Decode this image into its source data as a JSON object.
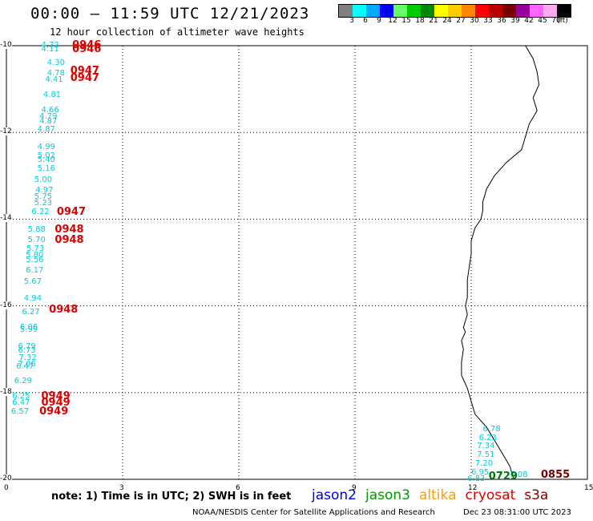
{
  "header": {
    "title": "00:00 – 11:59 UTC 12/21/2023",
    "subtitle": "12 hour collection of altimeter wave heights"
  },
  "color_scale": {
    "colors": [
      "#808080",
      "#00ffff",
      "#00aaff",
      "#0000ff",
      "#66ff66",
      "#00cc00",
      "#008800",
      "#ffff00",
      "#ffcc00",
      "#ff8800",
      "#ff0000",
      "#bb0000",
      "#770000",
      "#990099",
      "#ff66ff",
      "#ffaaee",
      "#000000"
    ],
    "labels": [
      "3",
      "6",
      "9",
      "12",
      "15",
      "18",
      "21",
      "24",
      "27",
      "30",
      "33",
      "36",
      "39",
      "42",
      "45",
      "70",
      "(ft)"
    ]
  },
  "axes": {
    "x_ticks": [
      "0",
      "3",
      "6",
      "9",
      "12",
      "15"
    ],
    "y_ticks": [
      "-10",
      "-12",
      "-14",
      "-16",
      "-18",
      "-20"
    ]
  },
  "wave_heights": [
    {
      "label": "4.72",
      "lon": 0.9,
      "lat": -10.0
    },
    {
      "label": "4.11",
      "lon": 0.9,
      "lat": -10.1
    },
    {
      "label": "4.30",
      "lon": 1.05,
      "lat": -10.4
    },
    {
      "label": "4.78",
      "lon": 1.05,
      "lat": -10.65
    },
    {
      "label": "4.41",
      "lon": 1.0,
      "lat": -10.8
    },
    {
      "label": "4.81",
      "lon": 0.95,
      "lat": -11.15
    },
    {
      "label": "4.66",
      "lon": 0.9,
      "lat": -11.5
    },
    {
      "label": "4.79",
      "lon": 0.85,
      "lat": -11.65
    },
    {
      "label": "4.87",
      "lon": 0.85,
      "lat": -11.75
    },
    {
      "label": "4.87",
      "lon": 0.8,
      "lat": -11.95
    },
    {
      "label": "4.99",
      "lon": 0.8,
      "lat": -12.35
    },
    {
      "label": "5.02",
      "lon": 0.8,
      "lat": -12.55
    },
    {
      "label": "5.40",
      "lon": 0.8,
      "lat": -12.65
    },
    {
      "label": "5.16",
      "lon": 0.8,
      "lat": -12.85
    },
    {
      "label": "5.00",
      "lon": 0.72,
      "lat": -13.1
    },
    {
      "label": "4.97",
      "lon": 0.75,
      "lat": -13.35
    },
    {
      "label": "5.75",
      "lon": 0.72,
      "lat": -13.5
    },
    {
      "label": "5.23",
      "lon": 0.72,
      "lat": -13.65
    },
    {
      "label": "6.22",
      "lon": 0.65,
      "lat": -13.85
    },
    {
      "label": "5.88",
      "lon": 0.55,
      "lat": -14.25
    },
    {
      "label": "5.70",
      "lon": 0.55,
      "lat": -14.5
    },
    {
      "label": "5.73",
      "lon": 0.52,
      "lat": -14.7
    },
    {
      "label": "5.80",
      "lon": 0.5,
      "lat": -14.85
    },
    {
      "label": "5.56",
      "lon": 0.5,
      "lat": -14.95
    },
    {
      "label": "6.17",
      "lon": 0.5,
      "lat": -15.2
    },
    {
      "label": "5.67",
      "lon": 0.45,
      "lat": -15.45
    },
    {
      "label": "4.94",
      "lon": 0.45,
      "lat": -15.85
    },
    {
      "label": "6.27",
      "lon": 0.4,
      "lat": -16.15
    },
    {
      "label": "6.06",
      "lon": 0.35,
      "lat": -16.5
    },
    {
      "label": "5.99",
      "lon": 0.35,
      "lat": -16.57
    },
    {
      "label": "6.79",
      "lon": 0.3,
      "lat": -16.95
    },
    {
      "label": "6.73",
      "lon": 0.3,
      "lat": -17.05
    },
    {
      "label": "7.32",
      "lon": 0.32,
      "lat": -17.2
    },
    {
      "label": "7.06",
      "lon": 0.3,
      "lat": -17.35
    },
    {
      "label": "6.47",
      "lon": 0.25,
      "lat": -17.42
    },
    {
      "label": "6.29",
      "lon": 0.2,
      "lat": -17.75
    },
    {
      "label": "6.25",
      "lon": 0.15,
      "lat": -18.1
    },
    {
      "label": "6.47",
      "lon": 0.15,
      "lat": -18.25
    },
    {
      "label": "6.57",
      "lon": 0.12,
      "lat": -18.45
    },
    {
      "label": "6.78",
      "lon": 12.3,
      "lat": -18.85
    },
    {
      "label": "6.23",
      "lon": 12.2,
      "lat": -19.05
    },
    {
      "label": "7.34",
      "lon": 12.15,
      "lat": -19.25
    },
    {
      "label": "7.51",
      "lon": 12.15,
      "lat": -19.45
    },
    {
      "label": "7.20",
      "lon": 12.1,
      "lat": -19.65
    },
    {
      "label": "6.95",
      "lon": 12.0,
      "lat": -19.85
    },
    {
      "label": "6.83",
      "lon": 11.9,
      "lat": -20.0
    },
    {
      "label": "7.08",
      "lon": 13.0,
      "lat": -19.9
    }
  ],
  "pass_times": [
    {
      "label": "0946",
      "lon": 1.7,
      "lat": -10.0,
      "color": "#dd0000"
    },
    {
      "label": "0946",
      "lon": 1.7,
      "lat": -10.1,
      "color": "#dd0000"
    },
    {
      "label": "0947",
      "lon": 1.65,
      "lat": -10.6,
      "color": "#dd0000"
    },
    {
      "label": "0947",
      "lon": 1.65,
      "lat": -10.75,
      "color": "#dd0000"
    },
    {
      "label": "0947",
      "lon": 1.3,
      "lat": -13.85,
      "color": "#dd0000"
    },
    {
      "label": "0948",
      "lon": 1.25,
      "lat": -14.25,
      "color": "#dd0000"
    },
    {
      "label": "0948",
      "lon": 1.25,
      "lat": -14.5,
      "color": "#dd0000"
    },
    {
      "label": "0948",
      "lon": 1.1,
      "lat": -16.1,
      "color": "#dd0000"
    },
    {
      "label": "0949",
      "lon": 0.9,
      "lat": -18.1,
      "color": "#dd0000"
    },
    {
      "label": "0949",
      "lon": 0.9,
      "lat": -18.25,
      "color": "#dd0000"
    },
    {
      "label": "0949",
      "lon": 0.85,
      "lat": -18.45,
      "color": "#dd0000"
    },
    {
      "label": "0729",
      "lon": 12.45,
      "lat": -19.95,
      "color": "#007700"
    },
    {
      "label": "0855",
      "lon": 13.8,
      "lat": -19.9,
      "color": "#770000"
    }
  ],
  "coastline": [
    [
      13.4,
      -10.0
    ],
    [
      13.6,
      -10.3
    ],
    [
      13.7,
      -10.6
    ],
    [
      13.75,
      -10.9
    ],
    [
      13.6,
      -11.2
    ],
    [
      13.7,
      -11.5
    ],
    [
      13.5,
      -11.8
    ],
    [
      13.4,
      -12.1
    ],
    [
      13.3,
      -12.4
    ],
    [
      12.9,
      -12.7
    ],
    [
      12.6,
      -13.0
    ],
    [
      12.4,
      -13.3
    ],
    [
      12.3,
      -13.6
    ],
    [
      12.3,
      -13.8
    ],
    [
      12.25,
      -14.0
    ],
    [
      12.1,
      -14.2
    ],
    [
      12.0,
      -14.5
    ],
    [
      12.0,
      -14.8
    ],
    [
      11.95,
      -15.1
    ],
    [
      11.9,
      -15.4
    ],
    [
      11.9,
      -15.8
    ],
    [
      11.85,
      -16.0
    ],
    [
      11.9,
      -16.2
    ],
    [
      11.8,
      -16.5
    ],
    [
      11.85,
      -16.6
    ],
    [
      11.75,
      -16.8
    ],
    [
      11.8,
      -17.0
    ],
    [
      11.75,
      -17.3
    ],
    [
      11.75,
      -17.6
    ],
    [
      11.9,
      -17.9
    ],
    [
      12.0,
      -18.2
    ],
    [
      12.1,
      -18.5
    ],
    [
      12.4,
      -18.8
    ],
    [
      12.6,
      -19.1
    ],
    [
      12.8,
      -19.4
    ],
    [
      13.0,
      -19.7
    ],
    [
      13.1,
      -20.0
    ]
  ],
  "footer": {
    "note": "note: 1) Time is in UTC; 2) SWH is in feet",
    "satellites": [
      {
        "name": "jason2",
        "color": "#0000dd"
      },
      {
        "name": "jason3",
        "color": "#009900"
      },
      {
        "name": "altika",
        "color": "#ff9900"
      },
      {
        "name": "cryosat",
        "color": "#dd0000"
      },
      {
        "name": "s3a",
        "color": "#880000"
      }
    ],
    "credit": "NOAA/NESDIS Center for Satellite Applications and Research",
    "timestamp": "Dec 23 08:31:00 UTC 2023"
  }
}
